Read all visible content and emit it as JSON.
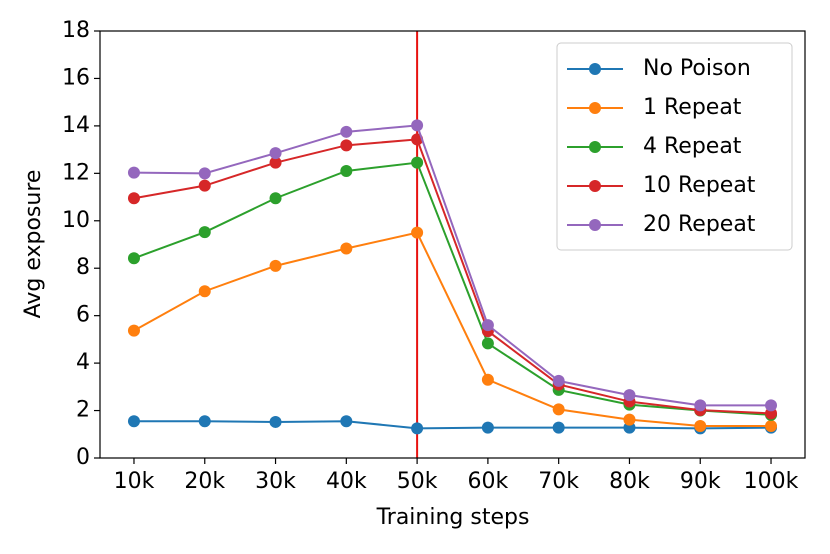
{
  "chart_data": {
    "type": "line",
    "x_label": "Training steps",
    "y_label": "Avg exposure",
    "categories": [
      "10k",
      "20k",
      "30k",
      "40k",
      "50k",
      "60k",
      "70k",
      "80k",
      "90k",
      "100k"
    ],
    "series": [
      {
        "name": "No Poison",
        "color": "#1f77b4",
        "values": [
          1.55,
          1.55,
          1.52,
          1.55,
          1.25,
          1.28,
          1.28,
          1.28,
          1.25,
          1.28
        ]
      },
      {
        "name": "1 Repeat",
        "color": "#ff7f0e",
        "values": [
          5.37,
          7.03,
          8.1,
          8.83,
          9.5,
          3.3,
          2.05,
          1.62,
          1.35,
          1.35
        ]
      },
      {
        "name": "4 Repeat",
        "color": "#2ca02c",
        "values": [
          8.42,
          9.52,
          10.95,
          12.1,
          12.45,
          4.83,
          2.87,
          2.25,
          2.0,
          1.82
        ]
      },
      {
        "name": "10 Repeat",
        "color": "#d62728",
        "values": [
          10.95,
          11.48,
          12.45,
          13.18,
          13.43,
          5.35,
          3.1,
          2.38,
          2.02,
          1.88
        ]
      },
      {
        "name": "20 Repeat",
        "color": "#9467bd",
        "values": [
          12.03,
          12.0,
          12.85,
          13.75,
          14.02,
          5.6,
          3.25,
          2.65,
          2.22,
          2.22
        ]
      }
    ],
    "ylim": [
      0,
      18
    ],
    "yticks": [
      0,
      2,
      4,
      6,
      8,
      10,
      12,
      14,
      16,
      18
    ],
    "grid": false,
    "legend": "upper right",
    "vline": {
      "x": "50k",
      "color": "#e8110f"
    }
  }
}
